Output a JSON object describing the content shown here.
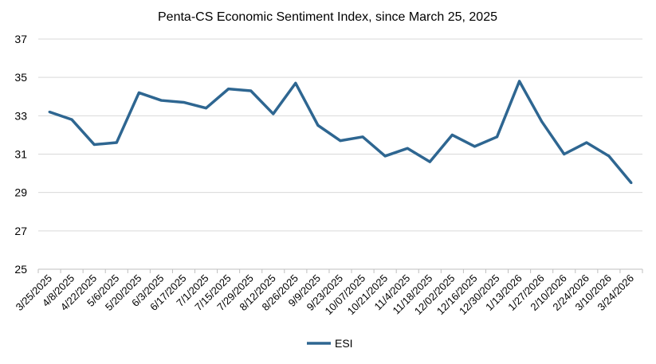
{
  "chart_data": {
    "type": "line",
    "title": "Penta-CS Economic Sentiment Index, since March 25, 2025",
    "xlabel": "",
    "ylabel": "",
    "ylim": [
      25,
      37
    ],
    "yticks": [
      25,
      27,
      29,
      31,
      33,
      35,
      37
    ],
    "grid": true,
    "legend": "bottom",
    "categories": [
      "3/25/2025",
      "4/8/2025",
      "4/22/2025",
      "5/6/2025",
      "5/20/2025",
      "6/3/2025",
      "6/17/2025",
      "7/1/2025",
      "7/15/2025",
      "7/29/2025",
      "8/12/2025",
      "8/26/2025",
      "9/9/2025",
      "9/23/2025",
      "10/07/2025",
      "10/21/2025",
      "11/4/2025",
      "11/18/2025",
      "12/02/2025",
      "12/16/2025",
      "12/30/2025",
      "1/13/2026",
      "1/27/2026",
      "2/10/2026",
      "2/24/2026",
      "3/10/2026",
      "3/24/2026"
    ],
    "series": [
      {
        "name": "ESI",
        "color": "#2e6691",
        "values": [
          33.2,
          32.8,
          31.5,
          31.6,
          34.2,
          33.8,
          33.7,
          33.4,
          34.4,
          34.3,
          33.1,
          34.7,
          32.5,
          31.7,
          31.9,
          30.9,
          31.3,
          30.6,
          32.0,
          31.4,
          31.9,
          34.8,
          32.7,
          31.0,
          31.6,
          30.9,
          29.5
        ]
      }
    ]
  }
}
